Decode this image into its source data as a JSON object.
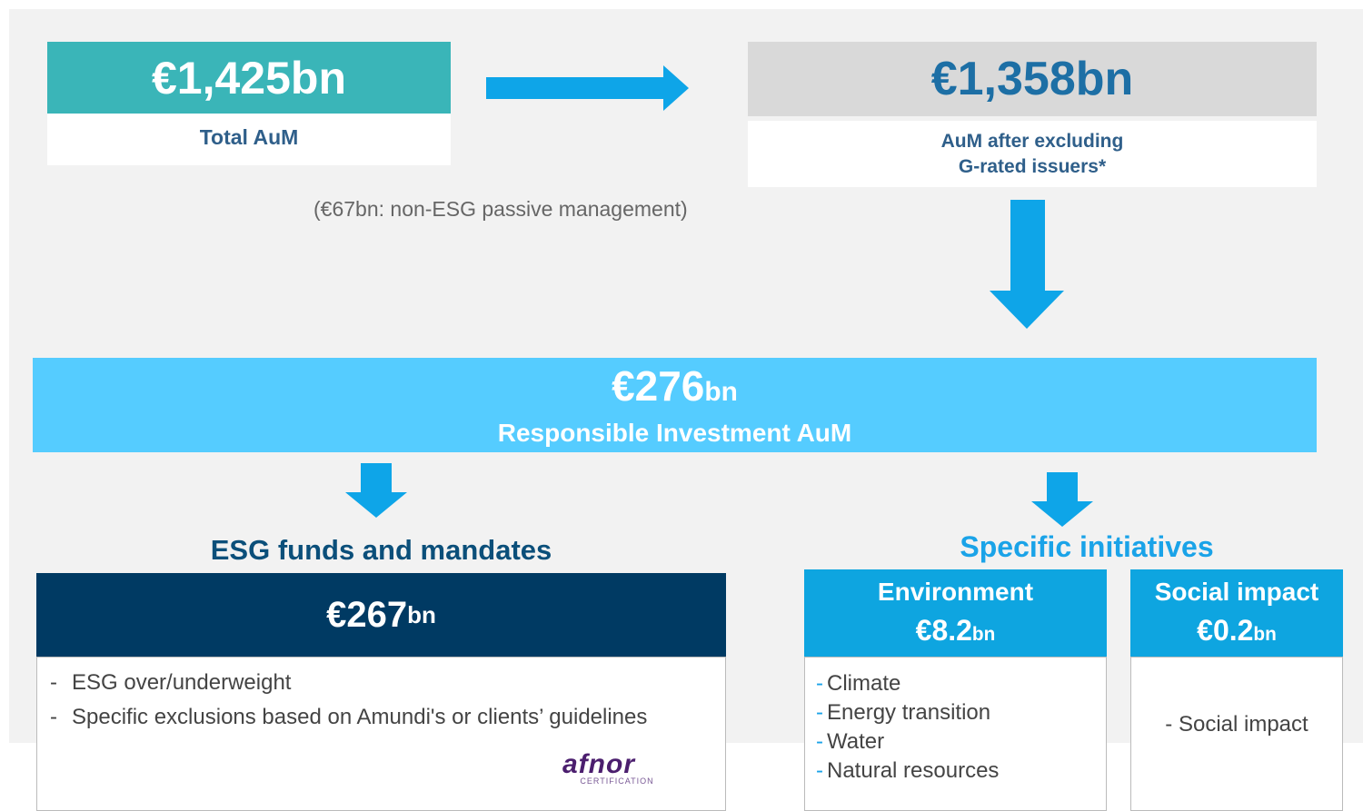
{
  "total": {
    "amount": "€1,425bn",
    "label": "Total AuM"
  },
  "after_exclusion": {
    "amount": "€1,358bn",
    "label_lines": [
      "AuM after excluding",
      "G-rated issuers*"
    ]
  },
  "passive_note": "(€67bn: non-ESG passive management)",
  "responsible": {
    "amount": "€276",
    "unit": "bn",
    "label": "Responsible Investment AuM"
  },
  "esg": {
    "heading": "ESG funds and mandates",
    "amount": "€267",
    "unit": "bn",
    "items": [
      "ESG over/underweight",
      "Specific exclusions based on Amundi's or clients’ guidelines"
    ],
    "logo": {
      "name": "afnor",
      "sub": "CERTIFICATION"
    }
  },
  "initiatives": {
    "heading": "Specific initiatives",
    "environment": {
      "title": "Environment",
      "amount": "€8.2",
      "unit": "bn",
      "items": [
        "Climate",
        "Energy transition",
        "Water",
        "Natural resources"
      ]
    },
    "social": {
      "title": "Social impact",
      "amount": "€0.2",
      "unit": "bn",
      "items": [
        "Social impact"
      ]
    }
  }
}
